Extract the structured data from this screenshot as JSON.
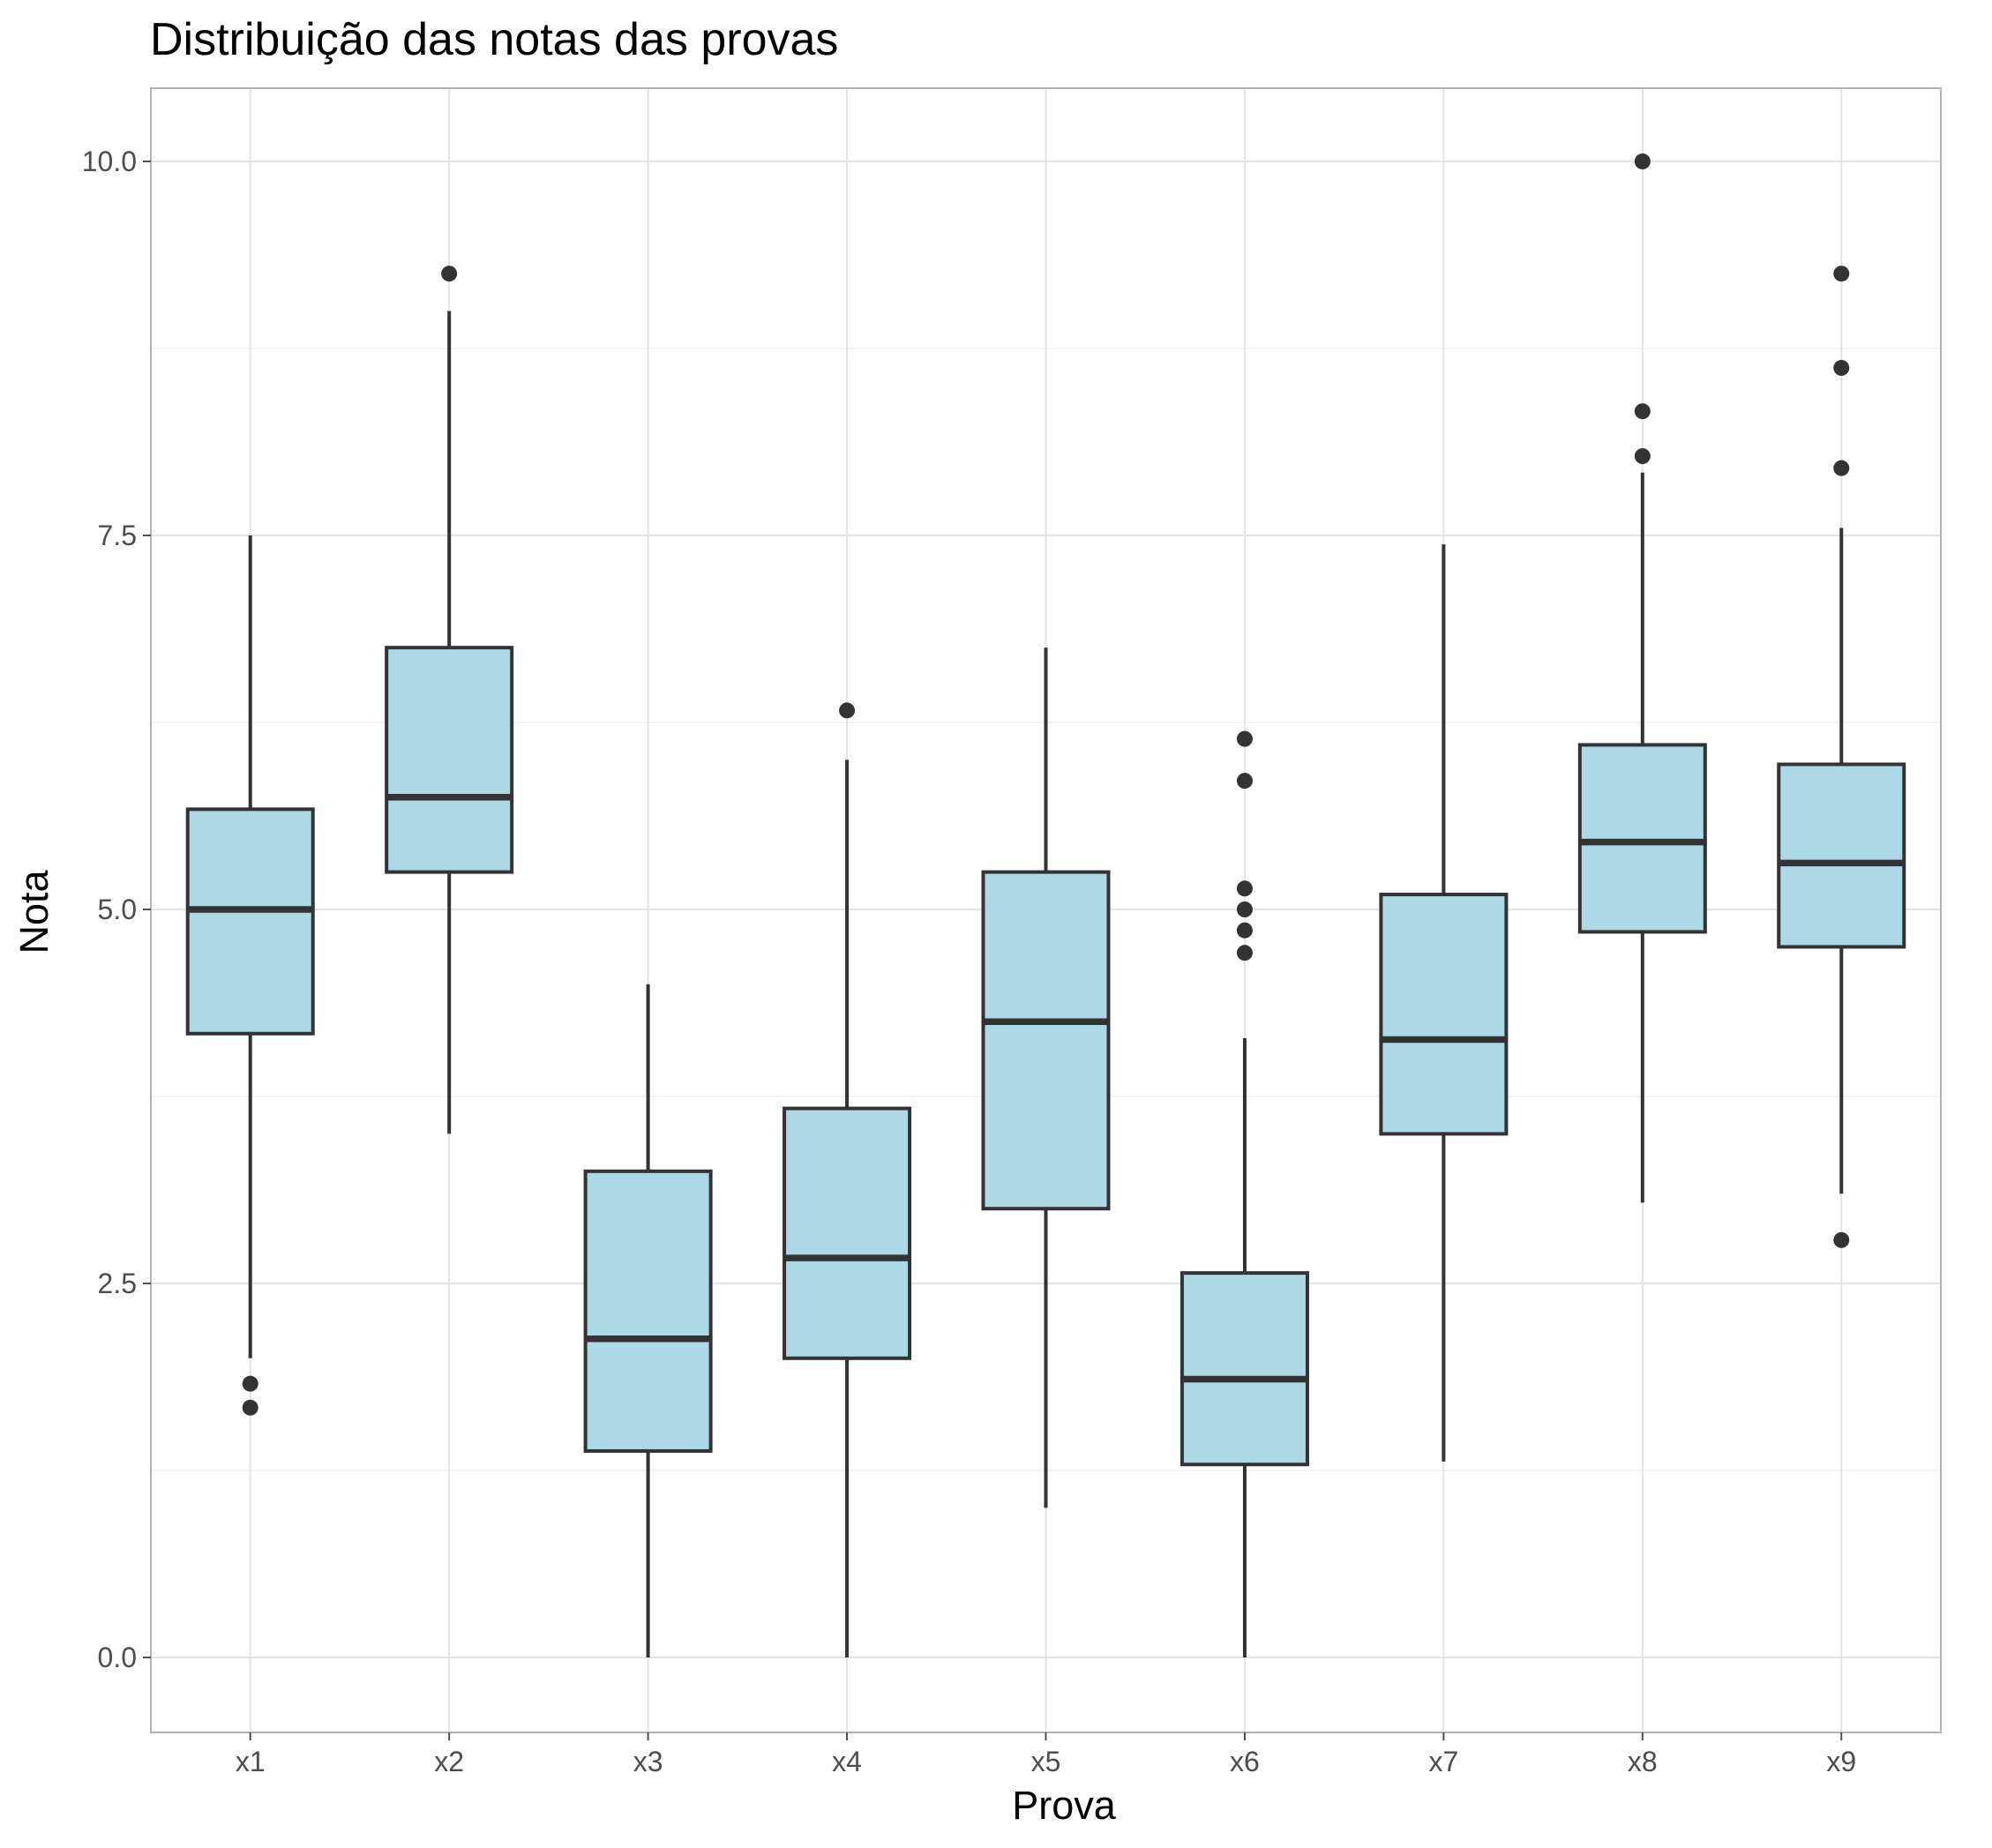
{
  "chart_data": {
    "type": "boxplot",
    "title": "Distribuição das notas das provas",
    "xlabel": "Prova",
    "ylabel": "Nota",
    "ylim": [
      -0.5,
      10.5
    ],
    "yticks": [
      0.0,
      2.5,
      5.0,
      7.5,
      10.0
    ],
    "ytick_labels": [
      "0.0",
      "2.5",
      "5.0",
      "7.5",
      "10.0"
    ],
    "grid": true,
    "box_fill": "#add8e6",
    "line_color": "#333333",
    "categories": [
      "x1",
      "x2",
      "x3",
      "x4",
      "x5",
      "x6",
      "x7",
      "x8",
      "x9"
    ],
    "boxes": [
      {
        "label": "x1",
        "whisker_low": 2.0,
        "q1": 4.17,
        "median": 5.0,
        "q3": 5.67,
        "whisker_high": 7.5,
        "outliers": [
          1.83,
          1.67
        ]
      },
      {
        "label": "x2",
        "whisker_low": 3.5,
        "q1": 5.25,
        "median": 5.75,
        "q3": 6.75,
        "whisker_high": 9.0,
        "outliers": [
          9.25
        ]
      },
      {
        "label": "x3",
        "whisker_low": 0.0,
        "q1": 1.38,
        "median": 2.13,
        "q3": 3.25,
        "whisker_high": 4.5,
        "outliers": []
      },
      {
        "label": "x4",
        "whisker_low": 0.0,
        "q1": 2.0,
        "median": 2.67,
        "q3": 3.67,
        "whisker_high": 6.0,
        "outliers": [
          6.33
        ]
      },
      {
        "label": "x5",
        "whisker_low": 1.0,
        "q1": 3.0,
        "median": 4.25,
        "q3": 5.25,
        "whisker_high": 6.75,
        "outliers": []
      },
      {
        "label": "x6",
        "whisker_low": 0.0,
        "q1": 1.29,
        "median": 1.86,
        "q3": 2.57,
        "whisker_high": 4.14,
        "outliers": [
          6.14,
          5.86,
          5.14,
          5.0,
          4.86,
          4.71
        ]
      },
      {
        "label": "x7",
        "whisker_low": 1.31,
        "q1": 3.5,
        "median": 4.13,
        "q3": 5.1,
        "whisker_high": 7.44,
        "outliers": []
      },
      {
        "label": "x8",
        "whisker_low": 3.04,
        "q1": 4.85,
        "median": 5.45,
        "q3": 6.1,
        "whisker_high": 7.92,
        "outliers": [
          10.0,
          8.33,
          8.03
        ]
      },
      {
        "label": "x9",
        "whisker_low": 3.1,
        "q1": 4.75,
        "median": 5.31,
        "q3": 5.97,
        "whisker_high": 7.55,
        "outliers": [
          9.25,
          8.62,
          7.95,
          2.79
        ]
      }
    ]
  }
}
